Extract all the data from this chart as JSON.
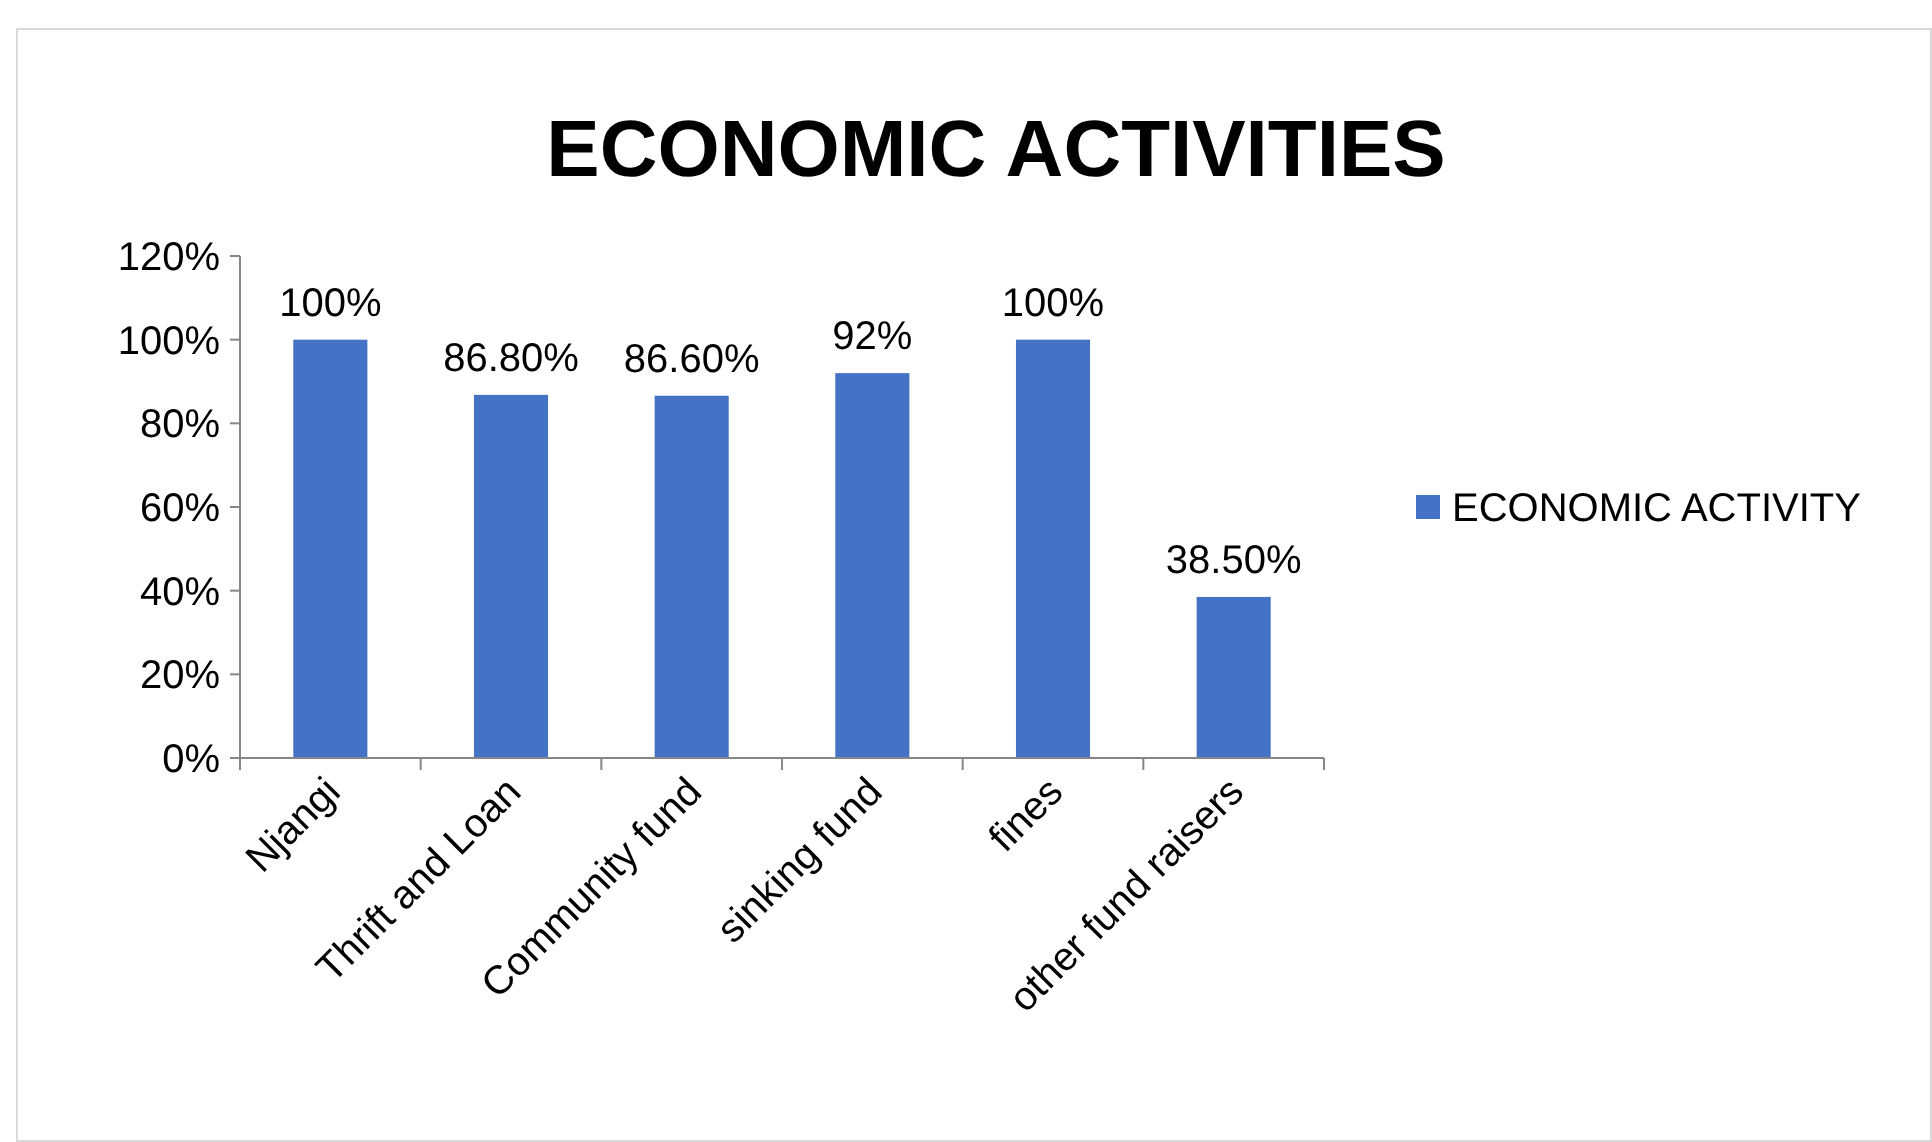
{
  "chart_data": {
    "type": "bar",
    "title": "ECONOMIC ACTIVITIES",
    "categories": [
      "Njangi",
      "Thrift and Loan",
      "Community fund",
      "sinking fund",
      "fines",
      "other fund raisers"
    ],
    "series": [
      {
        "name": "ECONOMIC ACTIVITY",
        "color": "#4472c4",
        "values": [
          100,
          86.8,
          86.6,
          92,
          100,
          38.5
        ],
        "value_labels": [
          "100%",
          "86.80%",
          "86.60%",
          "92%",
          "100%",
          "38.50%"
        ]
      }
    ],
    "ylim": [
      0,
      120
    ],
    "yticks": [
      {
        "value": 0,
        "label": "0%"
      },
      {
        "value": 20,
        "label": "20%"
      },
      {
        "value": 40,
        "label": "40%"
      },
      {
        "value": 60,
        "label": "60%"
      },
      {
        "value": 80,
        "label": "80%"
      },
      {
        "value": 100,
        "label": "100%"
      },
      {
        "value": 120,
        "label": "120%"
      }
    ],
    "grid": false,
    "legend": "right"
  }
}
